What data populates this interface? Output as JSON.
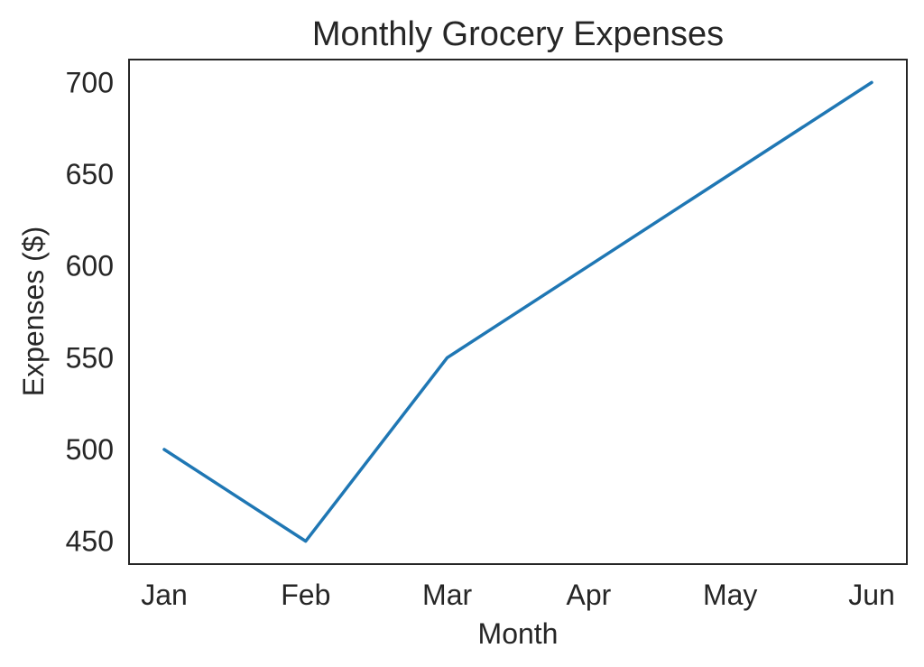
{
  "chart_data": {
    "type": "line",
    "title": "Monthly Grocery Expenses",
    "xlabel": "Month",
    "ylabel": "Expenses ($)",
    "categories": [
      "Jan",
      "Feb",
      "Mar",
      "Apr",
      "May",
      "Jun"
    ],
    "yticks": [
      450,
      500,
      550,
      600,
      650,
      700
    ],
    "ylim": [
      437.5,
      712.5
    ],
    "series": [
      {
        "values": [
          500,
          450,
          550,
          600,
          650,
          700
        ],
        "color": "#1f77b4"
      }
    ],
    "grid": false,
    "legend": false
  }
}
